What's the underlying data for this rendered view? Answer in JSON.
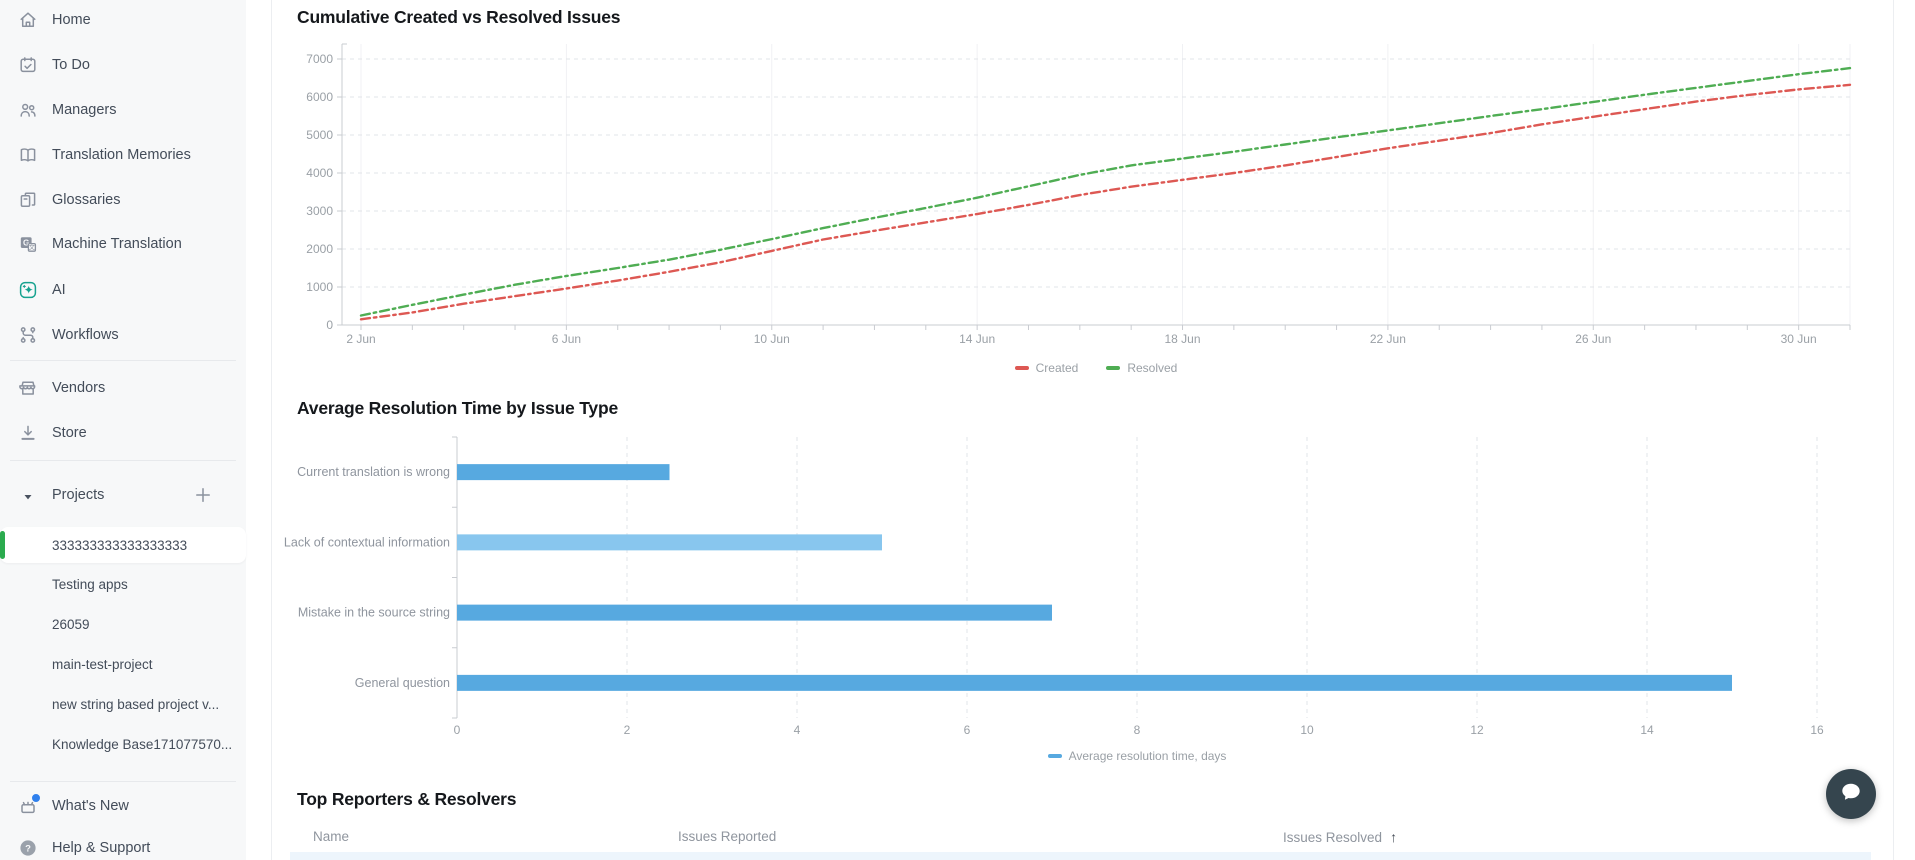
{
  "sidebar": {
    "nav_items": [
      {
        "id": "home",
        "label": "Home",
        "icon": "home-icon"
      },
      {
        "id": "to-do",
        "label": "To Do",
        "icon": "calendar-check-icon"
      },
      {
        "id": "managers",
        "label": "Managers",
        "icon": "people-icon"
      },
      {
        "id": "translation-memories",
        "label": "Translation Memories",
        "icon": "open-book-icon"
      },
      {
        "id": "glossaries",
        "label": "Glossaries",
        "icon": "books-icon"
      },
      {
        "id": "machine-translation",
        "label": "Machine Translation",
        "icon": "machine-translation-icon"
      },
      {
        "id": "ai",
        "label": "AI",
        "icon": "ai-sparkle-icon"
      },
      {
        "id": "workflows",
        "label": "Workflows",
        "icon": "workflow-icon"
      }
    ],
    "secondary_items": [
      {
        "id": "vendors",
        "label": "Vendors",
        "icon": "storefront-icon"
      },
      {
        "id": "store",
        "label": "Store",
        "icon": "download-icon"
      }
    ],
    "projects": {
      "header_label": "Projects",
      "items": [
        {
          "label": "333333333333333333",
          "selected": true
        },
        {
          "label": "Testing apps"
        },
        {
          "label": "26059"
        },
        {
          "label": "main-test-project"
        },
        {
          "label": "new string based project v..."
        },
        {
          "label": "Knowledge Base171077570..."
        }
      ]
    },
    "footer_items": [
      {
        "id": "whats-new",
        "label": "What's New",
        "icon": "whats-new-icon",
        "notification_dot": true
      },
      {
        "id": "help-support",
        "label": "Help & Support",
        "icon": "help-icon"
      }
    ]
  },
  "chart_data": [
    {
      "id": "cumulative-created-vs-resolved",
      "type": "line",
      "title": "Cumulative Created vs Resolved Issues",
      "x": [
        "2 Jun",
        "3 Jun",
        "4 Jun",
        "5 Jun",
        "6 Jun",
        "7 Jun",
        "8 Jun",
        "9 Jun",
        "10 Jun",
        "11 Jun",
        "12 Jun",
        "13 Jun",
        "14 Jun",
        "15 Jun",
        "16 Jun",
        "17 Jun",
        "18 Jun",
        "19 Jun",
        "20 Jun",
        "21 Jun",
        "22 Jun",
        "23 Jun",
        "24 Jun",
        "25 Jun",
        "26 Jun",
        "27 Jun",
        "28 Jun",
        "29 Jun",
        "30 Jun",
        "1 Jul"
      ],
      "x_axis_labels": [
        "2 Jun",
        "6 Jun",
        "10 Jun",
        "14 Jun",
        "18 Jun",
        "22 Jun",
        "26 Jun",
        "30 Jun"
      ],
      "y_ticks": [
        0,
        1000,
        2000,
        3000,
        4000,
        5000,
        6000,
        7000
      ],
      "ylim": [
        0,
        7400
      ],
      "grid": true,
      "line_style": "dashed",
      "legend_position": "bottom",
      "series": [
        {
          "name": "Created",
          "color": "#dd5853",
          "values": [
            150,
            330,
            560,
            760,
            960,
            1170,
            1400,
            1650,
            1950,
            2250,
            2480,
            2700,
            2920,
            3160,
            3420,
            3640,
            3820,
            4000,
            4200,
            4420,
            4650,
            4850,
            5050,
            5280,
            5480,
            5680,
            5880,
            6050,
            6200,
            6320
          ]
        },
        {
          "name": "Resolved",
          "color": "#4fad53",
          "values": [
            250,
            530,
            800,
            1060,
            1290,
            1500,
            1720,
            1980,
            2260,
            2550,
            2820,
            3080,
            3350,
            3650,
            3950,
            4200,
            4380,
            4560,
            4750,
            4940,
            5120,
            5310,
            5500,
            5680,
            5870,
            6060,
            6240,
            6420,
            6600,
            6760
          ]
        }
      ]
    },
    {
      "id": "avg-resolution-time",
      "type": "bar",
      "orientation": "horizontal",
      "title": "Average Resolution Time by Issue Type",
      "categories": [
        "Current translation is wrong",
        "Lack of contextual information",
        "Mistake in the source string",
        "General question"
      ],
      "values": [
        2.5,
        5,
        7,
        15
      ],
      "bar_colors": [
        "#57a9e0",
        "#88c6ee",
        "#57a9e0",
        "#57a9e0"
      ],
      "x_ticks": [
        0,
        2,
        4,
        6,
        8,
        10,
        12,
        14,
        16
      ],
      "xlim": [
        0,
        16
      ],
      "legend": [
        {
          "label": "Average resolution time, days",
          "color": "#57a9e0"
        }
      ]
    }
  ],
  "table": {
    "title": "Top Reporters & Resolvers",
    "columns": [
      {
        "label": "Name"
      },
      {
        "label": "Issues Reported"
      },
      {
        "label": "Issues Resolved",
        "sorted": true,
        "sort_icon": "arrow-up-icon",
        "sort_glyph": "↑"
      }
    ]
  },
  "chat": {
    "icon": "chat-bubble-icon"
  },
  "colors": {
    "sidebar_bg": "#f7f8f9",
    "accent_green": "#2bab4e",
    "notification_blue": "#2f80ed",
    "created_red": "#dd5853",
    "resolved_green": "#4fad53",
    "bar_blue": "#57a9e0",
    "bar_blue_light": "#88c6ee",
    "ai_teal": "#16a28f",
    "chat_button": "#35454e"
  }
}
